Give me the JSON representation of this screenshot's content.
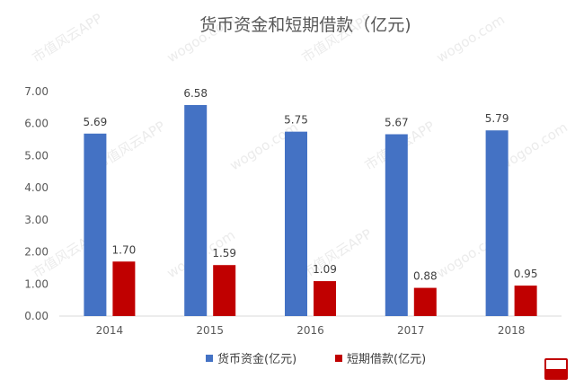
{
  "chart_data": {
    "type": "bar",
    "title": "货币资金和短期借款（亿元)",
    "categories": [
      "2014",
      "2015",
      "2016",
      "2017",
      "2018"
    ],
    "series": [
      {
        "name": "货币资金(亿元)",
        "color": "#4472C4",
        "values": [
          5.69,
          6.58,
          5.75,
          5.67,
          5.79
        ],
        "labels": [
          "5.69",
          "6.58",
          "5.75",
          "5.67",
          "5.79"
        ]
      },
      {
        "name": "短期借款(亿元)",
        "color": "#C00000",
        "values": [
          1.7,
          1.59,
          1.09,
          0.88,
          0.95
        ],
        "labels": [
          "1.70",
          "1.59",
          "1.09",
          "0.88",
          "0.95"
        ]
      }
    ],
    "yticks": [
      "0.00",
      "1.00",
      "2.00",
      "3.00",
      "4.00",
      "5.00",
      "6.00",
      "7.00"
    ],
    "ylim": [
      0,
      7
    ],
    "xlabel": "",
    "ylabel": "",
    "grid": false,
    "legend_position": "bottom"
  },
  "watermark": {
    "text": "市值风云APP",
    "domain": "wogoo.com"
  },
  "logo": {
    "text": "市值风云"
  }
}
